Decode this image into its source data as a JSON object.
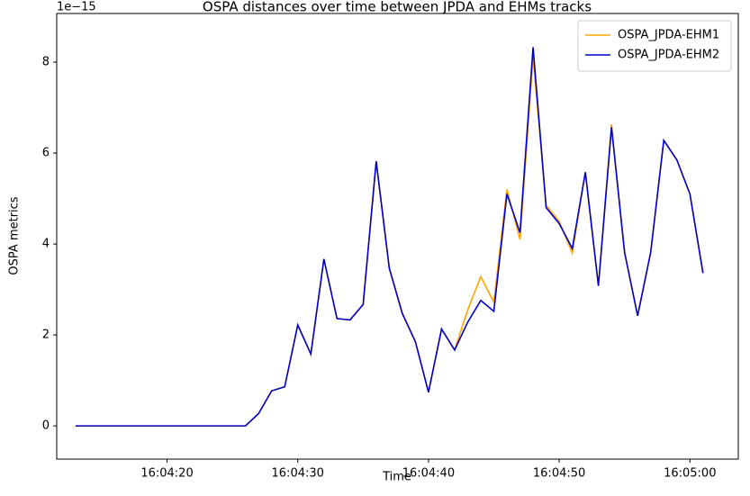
{
  "chart_data": {
    "type": "line",
    "title": "OSPA distances over time between JPDA and EHMs tracks",
    "x_label": "Time",
    "y_label": "OSPA metrics",
    "y_offset_label": "1e−15",
    "x": [
      "16:04:13",
      "16:04:14",
      "16:04:15",
      "16:04:16",
      "16:04:17",
      "16:04:18",
      "16:04:19",
      "16:04:20",
      "16:04:21",
      "16:04:22",
      "16:04:23",
      "16:04:24",
      "16:04:25",
      "16:04:26",
      "16:04:27",
      "16:04:28",
      "16:04:29",
      "16:04:30",
      "16:04:31",
      "16:04:32",
      "16:04:33",
      "16:04:34",
      "16:04:35",
      "16:04:36",
      "16:04:37",
      "16:04:38",
      "16:04:39",
      "16:04:40",
      "16:04:41",
      "16:04:42",
      "16:04:43",
      "16:04:44",
      "16:04:45",
      "16:04:46",
      "16:04:47",
      "16:04:48",
      "16:04:49",
      "16:04:50",
      "16:04:51",
      "16:04:52",
      "16:04:53",
      "16:04:54",
      "16:04:55",
      "16:04:56",
      "16:04:57",
      "16:04:58",
      "16:04:59",
      "16:05:00",
      "16:05:01"
    ],
    "series": [
      {
        "name": "OSPA_JPDA-EHM1",
        "color": "#ffa500",
        "values": [
          0,
          0,
          0,
          0,
          0,
          0,
          0,
          0,
          0,
          0,
          0,
          0,
          0,
          0,
          0.27,
          0.77,
          0.86,
          2.22,
          1.58,
          3.67,
          2.36,
          2.33,
          2.67,
          5.82,
          3.47,
          2.47,
          1.85,
          0.74,
          2.13,
          1.67,
          2.55,
          3.28,
          2.72,
          5.2,
          4.1,
          8.1,
          4.85,
          4.5,
          3.8,
          5.58,
          3.08,
          6.63,
          3.8,
          2.42,
          3.82,
          6.28,
          5.85,
          5.1,
          3.36
        ]
      },
      {
        "name": "OSPA_JPDA-EHM2",
        "color": "#0000cd",
        "values": [
          0,
          0,
          0,
          0,
          0,
          0,
          0,
          0,
          0,
          0,
          0,
          0,
          0,
          0,
          0.27,
          0.77,
          0.86,
          2.22,
          1.58,
          3.67,
          2.36,
          2.33,
          2.67,
          5.82,
          3.47,
          2.47,
          1.85,
          0.74,
          2.13,
          1.67,
          2.28,
          2.76,
          2.52,
          5.1,
          4.25,
          8.33,
          4.8,
          4.45,
          3.9,
          5.58,
          3.08,
          6.57,
          3.82,
          2.42,
          3.82,
          6.28,
          5.85,
          5.1,
          3.36
        ]
      }
    ],
    "xlim": [
      "16:04:11.56",
      "16:05:03.7"
    ],
    "xticks": [
      "16:04:20",
      "16:04:30",
      "16:04:40",
      "16:04:50",
      "16:05:00"
    ],
    "ylim": [
      -0.73,
      9.07
    ],
    "yticks": [
      0,
      2,
      4,
      6,
      8
    ],
    "legend": "upper right"
  }
}
